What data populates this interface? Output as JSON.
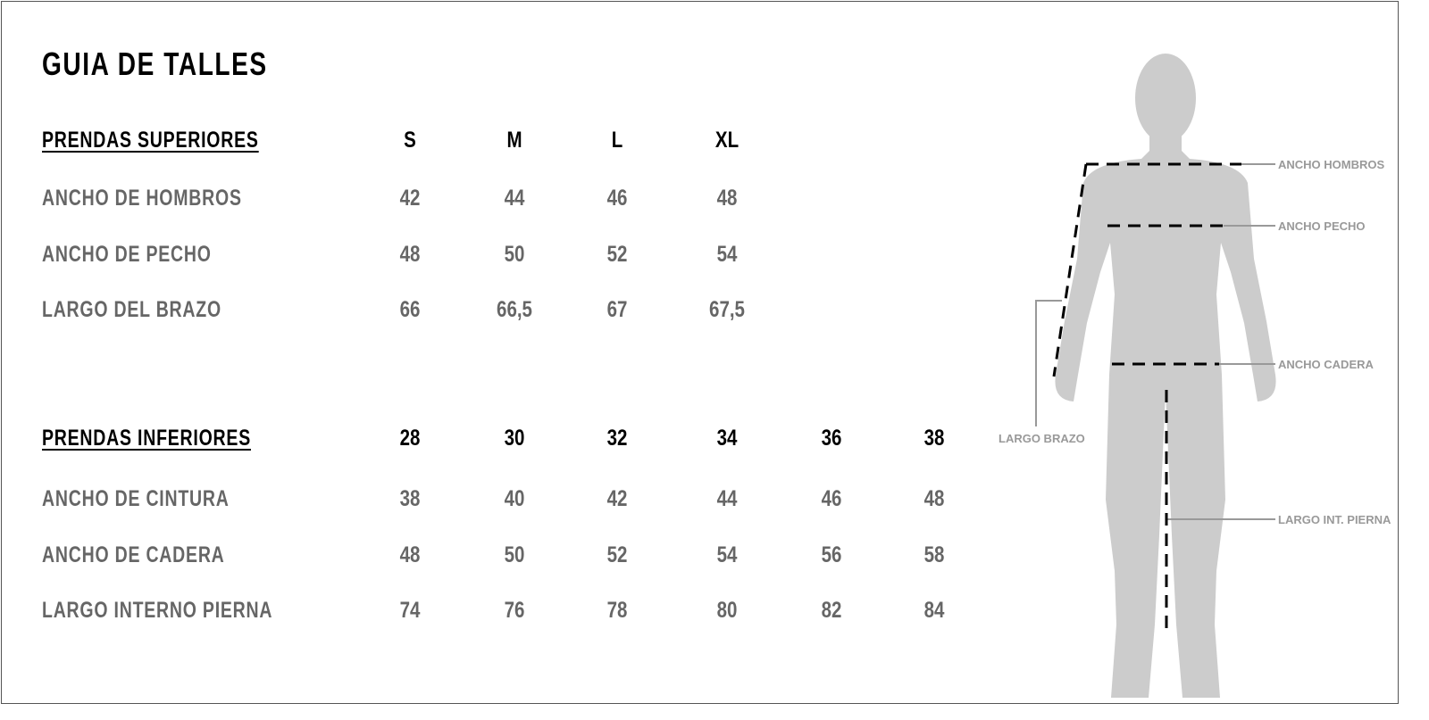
{
  "title": "GUIA DE TALLES",
  "upper": {
    "heading": "PRENDAS SUPERIORES",
    "sizes": [
      "S",
      "M",
      "L",
      "XL"
    ],
    "rows": [
      {
        "label": "ANCHO DE HOMBROS",
        "values": [
          "42",
          "44",
          "46",
          "48"
        ]
      },
      {
        "label": "ANCHO DE PECHO",
        "values": [
          "48",
          "50",
          "52",
          "54"
        ]
      },
      {
        "label": "LARGO DEL BRAZO",
        "values": [
          "66",
          "66,5",
          "67",
          "67,5"
        ]
      }
    ]
  },
  "lower": {
    "heading": "PRENDAS INFERIORES",
    "sizes": [
      "28",
      "30",
      "32",
      "34",
      "36",
      "38"
    ],
    "rows": [
      {
        "label": "ANCHO DE CINTURA",
        "values": [
          "38",
          "40",
          "42",
          "44",
          "46",
          "48"
        ]
      },
      {
        "label": "ANCHO DE CADERA",
        "values": [
          "48",
          "50",
          "52",
          "54",
          "56",
          "58"
        ]
      },
      {
        "label": "LARGO INTERNO PIERNA",
        "values": [
          "74",
          "76",
          "78",
          "80",
          "82",
          "84"
        ]
      }
    ]
  },
  "figure": {
    "labels": {
      "shoulders": "ANCHO HOMBROS",
      "chest": "ANCHO PECHO",
      "hip": "ANCHO CADERA",
      "arm": "LARGO BRAZO",
      "inseam": "LARGO INT. PIERNA"
    },
    "colors": {
      "silhouette": "#cccccc",
      "dash": "#000000",
      "leader": "#999999"
    }
  }
}
